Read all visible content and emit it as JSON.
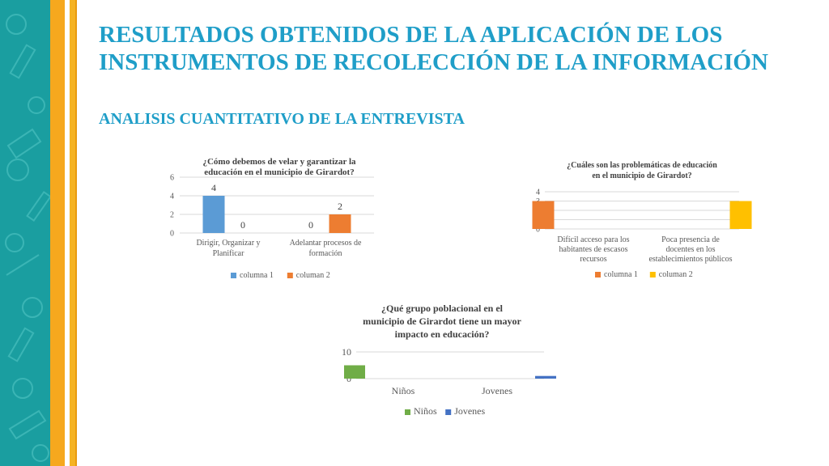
{
  "slide": {
    "title": "RESULTADOS OBTENIDOS DE LA APLICACIÓN DE LOS INSTRUMENTOS DE RECOLECCIÓN DE LA INFORMACIÓN",
    "subtitle": "ANALISIS CUANTITATIVO DE LA ENTREVISTA"
  },
  "colors": {
    "title": "#1f9ec8",
    "sidebar_teal": "#1a9ea0",
    "sidebar_yellow": "#f6a81e"
  },
  "chart_data": [
    {
      "type": "bar",
      "title": "¿Cómo debemos de velar y garantizar la educación en el municipio de Girardot?",
      "categories": [
        "Dirigir, Organizar y Planificar",
        "Adelantar procesos de formación"
      ],
      "category_lines": [
        [
          "Dirigir, Organizar y",
          "Planificar"
        ],
        [
          "Adelantar procesos de",
          "formación"
        ]
      ],
      "series": [
        {
          "name": "columna 1",
          "values": [
            4,
            0
          ],
          "color": "#5b9bd5"
        },
        {
          "name": "columan 2",
          "values": [
            0,
            2
          ],
          "color": "#ed7d31"
        }
      ],
      "data_labels": true,
      "yticks": [
        0,
        2,
        4,
        6
      ],
      "ylim": [
        0,
        6
      ],
      "grid": true,
      "legend": "bottom"
    },
    {
      "type": "bar",
      "title": "¿Cuáles son las problemáticas de educación en el municipio de Girardot?",
      "categories": [
        "Difícil acceso para los habitantes de escasos recursos",
        "Poca presencia de docentes en los establecimientos públicos"
      ],
      "category_lines": [
        [
          "Difícil acceso para los",
          "habitantes de escasos",
          "recursos"
        ],
        [
          "Poca presencia de",
          "docentes en los",
          "establecimientos públicos"
        ]
      ],
      "series": [
        {
          "name": "columna 1",
          "values": [
            3,
            0
          ],
          "color": "#ed7d31"
        },
        {
          "name": "columan 2",
          "values": [
            0,
            3
          ],
          "color": "#ffc000"
        }
      ],
      "data_labels": false,
      "yticks": [
        0,
        1,
        2,
        3,
        4
      ],
      "ylim": [
        0,
        4
      ],
      "grid": true,
      "legend": "bottom"
    },
    {
      "type": "bar",
      "title": "¿Qué grupo poblacional en el municipio de Girardot tiene un mayor impacto en educación?",
      "categories": [
        "Niños",
        "Jovenes"
      ],
      "series": [
        {
          "name": "Niños",
          "values": [
            5,
            0
          ],
          "color": "#70ad47"
        },
        {
          "name": "Jovenes",
          "values": [
            0,
            1
          ],
          "color": "#4472c4"
        }
      ],
      "data_labels": false,
      "yticks": [
        0,
        10
      ],
      "ylim": [
        0,
        10
      ],
      "grid": true,
      "legend": "bottom"
    }
  ]
}
